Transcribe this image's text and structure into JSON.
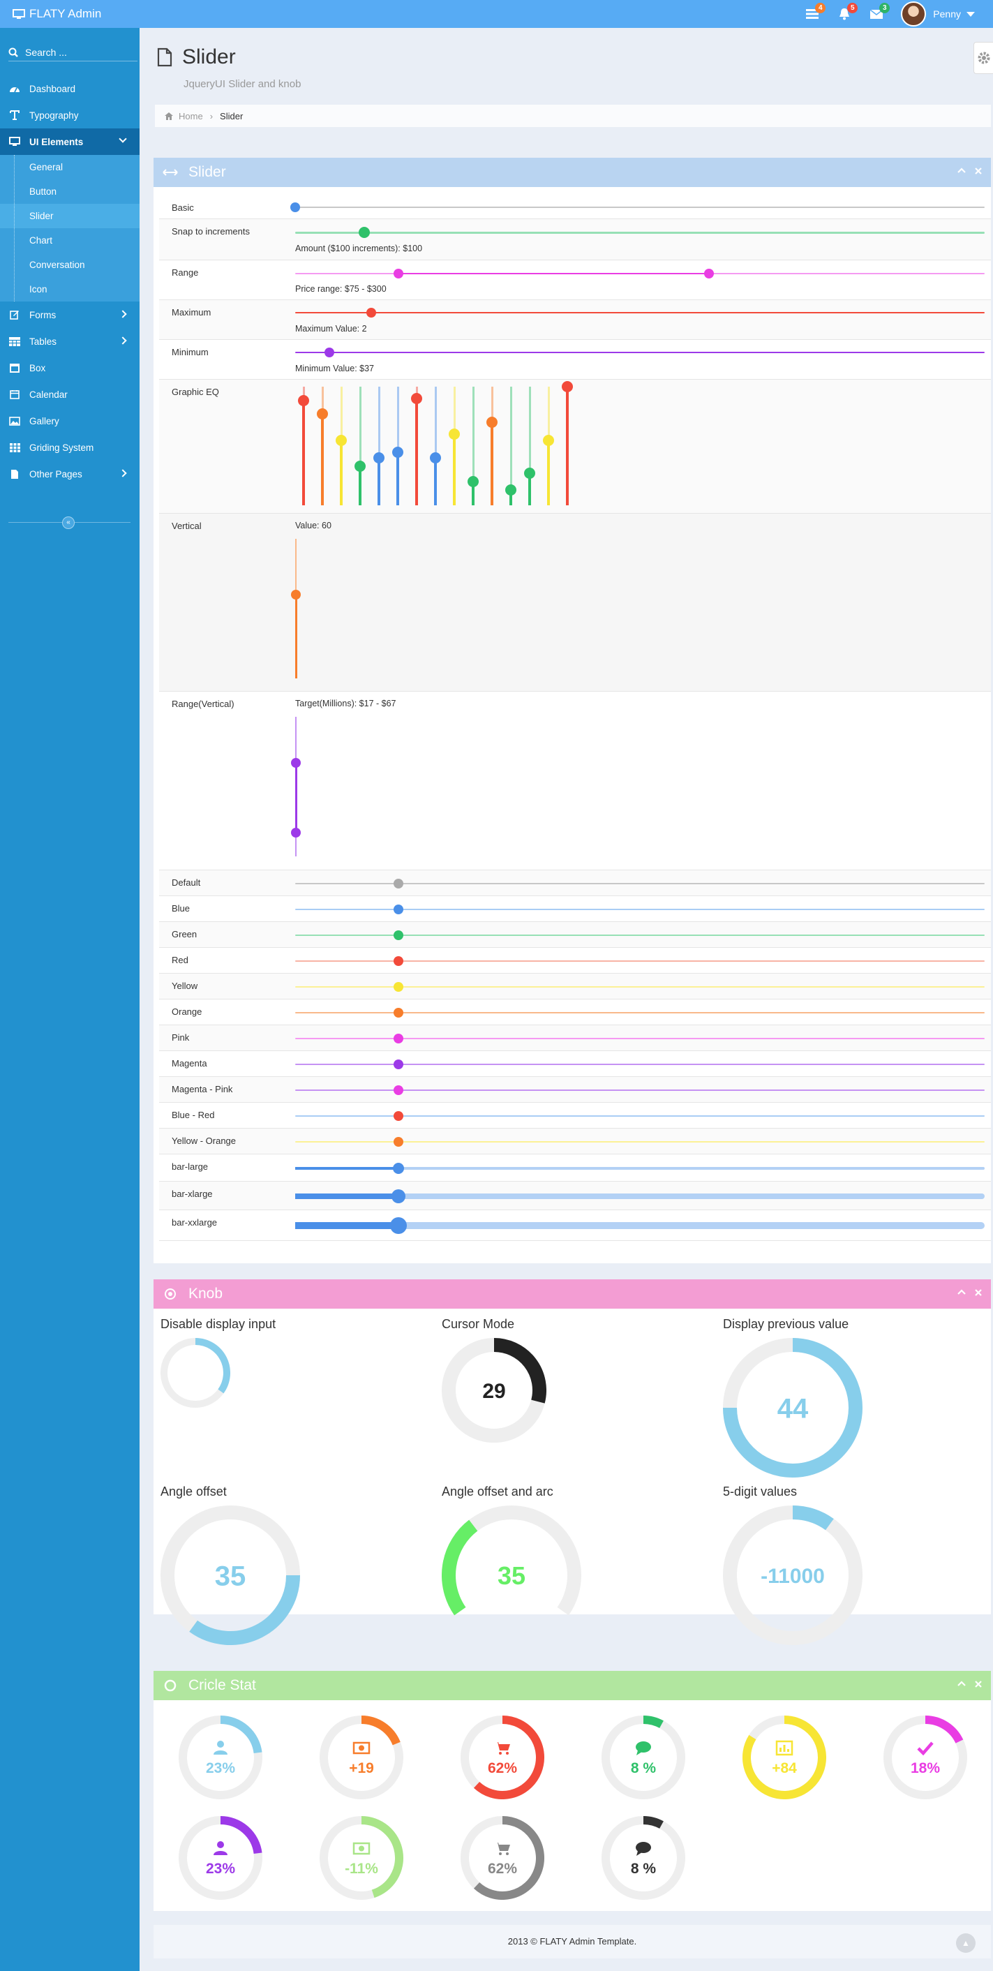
{
  "app": {
    "brand": "FLATY Admin",
    "user": "Penny"
  },
  "topbar": {
    "badges": [
      {
        "name": "tasks",
        "count": "4",
        "color": "#f77d2b"
      },
      {
        "name": "notifications",
        "count": "5",
        "color": "#f24a3a"
      },
      {
        "name": "messages",
        "count": "3",
        "color": "#2fb368"
      }
    ]
  },
  "sidebar": {
    "search_placeholder": "Search ...",
    "items": [
      {
        "label": "Dashboard",
        "icon": "dashboard-icon"
      },
      {
        "label": "Typography",
        "icon": "text-icon"
      },
      {
        "label": "UI Elements",
        "icon": "desktop-icon"
      },
      {
        "label": "Forms",
        "icon": "edit-icon"
      },
      {
        "label": "Tables",
        "icon": "table-icon"
      },
      {
        "label": "Box",
        "icon": "box-icon"
      },
      {
        "label": "Calendar",
        "icon": "calendar-icon"
      },
      {
        "label": "Gallery",
        "icon": "picture-icon"
      },
      {
        "label": "Griding System",
        "icon": "grid-icon"
      },
      {
        "label": "Other Pages",
        "icon": "file-icon"
      }
    ],
    "sub_items": [
      "General",
      "Button",
      "Slider",
      "Chart",
      "Conversation",
      "Icon"
    ]
  },
  "page": {
    "title": "Slider",
    "subtitle": "JqueryUI Slider and knob"
  },
  "breadcrumb": {
    "home": "Home",
    "current": "Slider"
  },
  "slider_box": {
    "title": "Slider",
    "rows": {
      "basic": {
        "label": "Basic",
        "value": 0
      },
      "snap": {
        "label": "Snap to increments",
        "value": 0.1,
        "note": "Amount ($100 increments): $100"
      },
      "range": {
        "label": "Range",
        "values": [
          0.15,
          0.6
        ],
        "note": "Price range: $75 - $300"
      },
      "maximum": {
        "label": "Maximum",
        "value": 0.11,
        "note": "Maximum Value: 2"
      },
      "minimum": {
        "label": "Minimum",
        "value": 0.05,
        "note": "Minimum Value: $37"
      },
      "eq": {
        "label": "Graphic EQ"
      },
      "vertical": {
        "label": "Vertical",
        "value": 0.6,
        "note": "Value: 60"
      },
      "range_vertical": {
        "label": "Range(Vertical)",
        "values": [
          0.17,
          0.67
        ],
        "note": "Target(Millions): $17 - $67"
      }
    },
    "eq_bars": [
      {
        "color": "#f24a3a",
        "value": 0.88
      },
      {
        "color": "#f77d2b",
        "value": 0.77
      },
      {
        "color": "#f7e534",
        "value": 0.55
      },
      {
        "color": "#2fc16a",
        "value": 0.33
      },
      {
        "color": "#4a8fe8",
        "value": 0.4
      },
      {
        "color": "#4a8fe8",
        "value": 0.45
      },
      {
        "color": "#f24a3a",
        "value": 0.9
      },
      {
        "color": "#4a8fe8",
        "value": 0.4
      },
      {
        "color": "#f7e534",
        "value": 0.6
      },
      {
        "color": "#2fc16a",
        "value": 0.2
      },
      {
        "color": "#f77d2b",
        "value": 0.7
      },
      {
        "color": "#2fc16a",
        "value": 0.13
      },
      {
        "color": "#2fc16a",
        "value": 0.27
      },
      {
        "color": "#f7e534",
        "value": 0.55
      },
      {
        "color": "#f24a3a",
        "value": 1.0
      }
    ],
    "color_rows": [
      {
        "label": "Default",
        "track": "#c8c8c8",
        "handle": "#aaaaaa",
        "size": "normal"
      },
      {
        "label": "Blue",
        "track": "#a9cdf5",
        "handle": "#4a8fe8",
        "size": "normal"
      },
      {
        "label": "Green",
        "track": "#96e0b5",
        "handle": "#2fc16a",
        "size": "normal"
      },
      {
        "label": "Red",
        "track": "#f8b4a5",
        "handle": "#f24a3a",
        "size": "normal"
      },
      {
        "label": "Yellow",
        "track": "#fbf196",
        "handle": "#f7e534",
        "size": "normal"
      },
      {
        "label": "Orange",
        "track": "#f9b98a",
        "handle": "#f77d2b",
        "size": "normal"
      },
      {
        "label": "Pink",
        "track": "#f59af2",
        "handle": "#e93de3",
        "size": "normal"
      },
      {
        "label": "Magenta",
        "track": "#c592f3",
        "handle": "#9c39e8",
        "size": "normal"
      },
      {
        "label": "Magenta - Pink",
        "track": "#c592f3",
        "handle": "#e93de3",
        "size": "normal"
      },
      {
        "label": "Blue - Red",
        "track": "#a9cdf5",
        "handle": "#f24a3a",
        "size": "normal"
      },
      {
        "label": "Yellow - Orange",
        "track": "#fbf196",
        "handle": "#f77d2b",
        "size": "normal"
      },
      {
        "label": "bar-large",
        "track": "#b3d1f5",
        "handle": "#4a8fe8",
        "size": "large"
      },
      {
        "label": "bar-xlarge",
        "track": "#b3d1f5",
        "handle": "#4a8fe8",
        "size": "xlarge"
      },
      {
        "label": "bar-xxlarge",
        "track": "#b3d1f5",
        "handle": "#4a8fe8",
        "size": "xxlarge"
      }
    ],
    "color_rows_value": 0.15
  },
  "knob_box": {
    "title": "Knob",
    "knobs": [
      {
        "title": "Disable display input",
        "value": "",
        "fraction": 0.35,
        "color": "#87ceeb",
        "text_color": "#87ceeb",
        "start_deg": 0,
        "arc_deg": 360
      },
      {
        "title": "Cursor Mode",
        "value": "29",
        "fraction": 0.29,
        "color": "#222222",
        "text_color": "#222222",
        "start_deg": 0,
        "arc_deg": 360
      },
      {
        "title": "Display previous value",
        "value": "44",
        "fraction": 0.75,
        "color": "#87ceeb",
        "text_color": "#87ceeb",
        "start_deg": 0,
        "arc_deg": 360
      },
      {
        "title": "Angle offset",
        "value": "35",
        "fraction": 0.35,
        "color": "#87ceeb",
        "text_color": "#87ceeb",
        "start_deg": 90,
        "arc_deg": 360
      },
      {
        "title": "Angle offset and arc",
        "value": "35",
        "fraction": 0.35,
        "color": "#66ee66",
        "text_color": "#66ee66",
        "start_deg": -125,
        "arc_deg": 250
      },
      {
        "title": "5-digit values",
        "value": "-11000",
        "fraction": 0.1,
        "color": "#87ceeb",
        "text_color": "#87ceeb",
        "start_deg": 0,
        "arc_deg": 360
      }
    ]
  },
  "stat_box": {
    "title": "Cricle Stat",
    "stats": [
      {
        "value": "23%",
        "fraction": 0.23,
        "color": "#87ceeb",
        "icon": "user-icon"
      },
      {
        "value": "+19",
        "fraction": 0.19,
        "color": "#f77d2b",
        "icon": "money-icon"
      },
      {
        "value": "62%",
        "fraction": 0.62,
        "color": "#f24a3a",
        "icon": "cart-icon"
      },
      {
        "value": "8 %",
        "fraction": 0.08,
        "color": "#2fc16a",
        "icon": "comment-icon"
      },
      {
        "value": "+84",
        "fraction": 0.84,
        "color": "#f7e534",
        "icon": "chart-icon"
      },
      {
        "value": "18%",
        "fraction": 0.18,
        "color": "#e93de3",
        "icon": "check-icon"
      },
      {
        "value": "23%",
        "fraction": 0.23,
        "color": "#9c39e8",
        "icon": "user-icon"
      },
      {
        "value": "-11%",
        "fraction": 0.45,
        "color": "#a9e588",
        "icon": "money-icon"
      },
      {
        "value": "62%",
        "fraction": 0.62,
        "color": "#888888",
        "icon": "cart-icon"
      },
      {
        "value": "8 %",
        "fraction": 0.08,
        "color": "#333333",
        "icon": "comment-icon"
      }
    ]
  },
  "footer": {
    "text": "2013 © FLATY Admin Template."
  }
}
